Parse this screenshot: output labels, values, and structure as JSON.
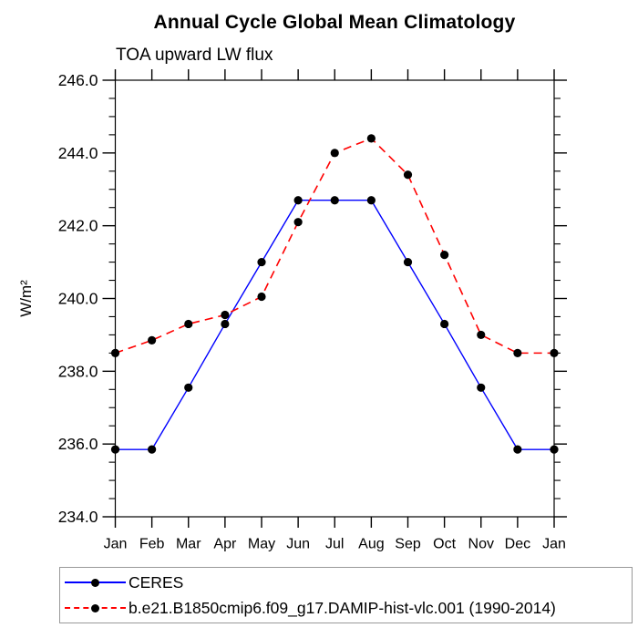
{
  "chart_data": {
    "type": "line",
    "title": "Annual Cycle Global Mean Climatology",
    "subtitle": "TOA upward LW flux",
    "ylabel": "W/m²",
    "xlabel": "",
    "categories": [
      "Jan",
      "Feb",
      "Mar",
      "Apr",
      "May",
      "Jun",
      "Jul",
      "Aug",
      "Sep",
      "Oct",
      "Nov",
      "Dec",
      "Jan"
    ],
    "ylim": [
      234.0,
      246.0
    ],
    "ytick_major": 2.0,
    "ytick_minor": 0.5,
    "grid": false,
    "legend_position": "bottom-left",
    "marker_color": "#000000",
    "series": [
      {
        "name": "CERES",
        "color": "#0000ff",
        "style": "solid",
        "values": [
          235.85,
          235.85,
          237.55,
          239.3,
          241.0,
          242.7,
          242.7,
          242.7,
          241.0,
          239.3,
          237.55,
          235.85,
          235.85
        ]
      },
      {
        "name": "b.e21.B1850cmip6.f09_g17.DAMIP-hist-vlc.001 (1990-2014)",
        "color": "#ff0000",
        "style": "dashed",
        "values": [
          238.5,
          238.85,
          239.3,
          239.55,
          240.05,
          242.1,
          244.0,
          244.4,
          243.4,
          241.2,
          239.0,
          238.5,
          238.5
        ]
      }
    ]
  }
}
